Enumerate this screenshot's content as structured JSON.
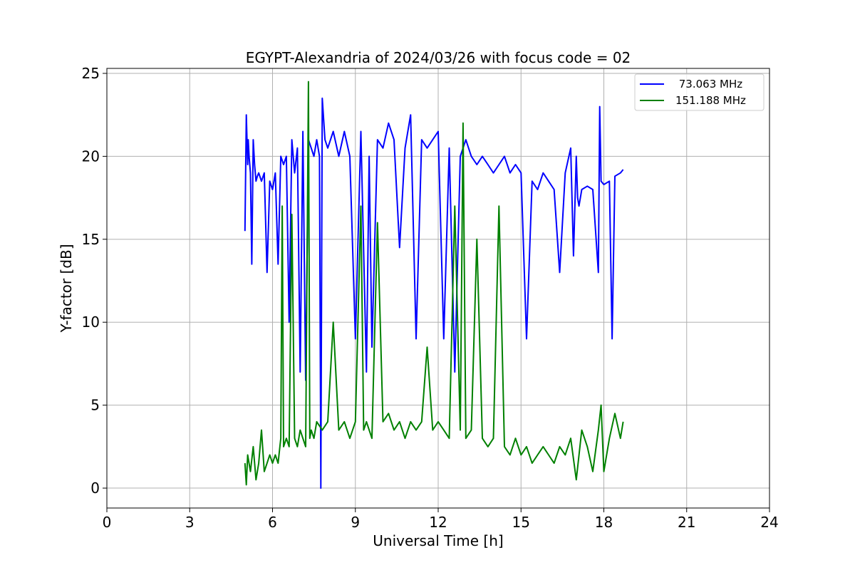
{
  "chart_data": {
    "type": "line",
    "title": "EGYPT-Alexandria of 2024/03/26 with focus code = 02",
    "xlabel": "Universal Time [h]",
    "ylabel": "Y-factor [dB]",
    "xlim": [
      0,
      24
    ],
    "ylim": [
      -1.2,
      25.3
    ],
    "xticks": [
      0,
      3,
      6,
      9,
      12,
      15,
      18,
      21,
      24
    ],
    "yticks": [
      0,
      5,
      10,
      15,
      20,
      25
    ],
    "grid": true,
    "legend_position": "top-right",
    "series": [
      {
        "name": " 73.063 MHz",
        "color": "#0000ff",
        "x": [
          5.0,
          5.05,
          5.1,
          5.12,
          5.15,
          5.2,
          5.25,
          5.3,
          5.35,
          5.4,
          5.45,
          5.5,
          5.6,
          5.7,
          5.8,
          5.9,
          6.0,
          6.1,
          6.2,
          6.3,
          6.4,
          6.5,
          6.6,
          6.7,
          6.8,
          6.9,
          7.0,
          7.1,
          7.2,
          7.3,
          7.4,
          7.5,
          7.6,
          7.7,
          7.75,
          7.8,
          7.9,
          8.0,
          8.2,
          8.4,
          8.6,
          8.8,
          9.0,
          9.2,
          9.4,
          9.5,
          9.6,
          9.8,
          10.0,
          10.2,
          10.4,
          10.6,
          10.8,
          11.0,
          11.2,
          11.4,
          11.6,
          11.8,
          12.0,
          12.2,
          12.4,
          12.6,
          12.8,
          13.0,
          13.2,
          13.4,
          13.6,
          13.8,
          14.0,
          14.2,
          14.4,
          14.6,
          14.8,
          15.0,
          15.2,
          15.4,
          15.6,
          15.8,
          16.0,
          16.2,
          16.4,
          16.6,
          16.8,
          16.9,
          17.0,
          17.05,
          17.1,
          17.2,
          17.4,
          17.6,
          17.8,
          17.85,
          17.9,
          18.0,
          18.2,
          18.3,
          18.4,
          18.6,
          18.7
        ],
        "y": [
          15.5,
          22.5,
          19.5,
          21.0,
          20.0,
          19.0,
          13.5,
          21.0,
          19.5,
          18.5,
          18.8,
          19.0,
          18.5,
          19.0,
          13.0,
          18.5,
          18.0,
          19.0,
          13.5,
          20.0,
          19.5,
          20.0,
          10.0,
          21.0,
          19.0,
          20.5,
          7.0,
          21.5,
          6.5,
          21.0,
          20.5,
          20.0,
          21.0,
          20.0,
          0.0,
          23.5,
          21.0,
          20.5,
          21.5,
          20.0,
          21.5,
          20.0,
          9.0,
          21.5,
          7.0,
          20.0,
          8.5,
          21.0,
          20.5,
          22.0,
          21.0,
          14.5,
          20.5,
          22.5,
          9.0,
          21.0,
          20.5,
          21.0,
          21.5,
          9.0,
          20.5,
          7.0,
          20.0,
          21.0,
          20.0,
          19.5,
          20.0,
          19.5,
          19.0,
          19.5,
          20.0,
          19.0,
          19.5,
          19.0,
          9.0,
          18.5,
          18.0,
          19.0,
          18.5,
          18.0,
          13.0,
          19.0,
          20.5,
          14.0,
          20.0,
          17.5,
          17.0,
          18.0,
          18.2,
          18.0,
          13.0,
          23.0,
          18.5,
          18.3,
          18.5,
          9.0,
          18.8,
          19.0,
          19.2
        ]
      },
      {
        "name": "151.188 MHz",
        "color": "#008000",
        "x": [
          5.0,
          5.05,
          5.1,
          5.2,
          5.3,
          5.4,
          5.5,
          5.6,
          5.7,
          5.8,
          5.9,
          6.0,
          6.1,
          6.2,
          6.3,
          6.35,
          6.4,
          6.5,
          6.6,
          6.7,
          6.8,
          6.9,
          7.0,
          7.1,
          7.2,
          7.3,
          7.35,
          7.4,
          7.5,
          7.6,
          7.8,
          8.0,
          8.2,
          8.4,
          8.6,
          8.8,
          9.0,
          9.2,
          9.3,
          9.4,
          9.6,
          9.8,
          10.0,
          10.2,
          10.4,
          10.6,
          10.8,
          11.0,
          11.2,
          11.4,
          11.6,
          11.8,
          12.0,
          12.2,
          12.4,
          12.6,
          12.8,
          12.9,
          13.0,
          13.2,
          13.4,
          13.6,
          13.8,
          14.0,
          14.2,
          14.4,
          14.6,
          14.8,
          15.0,
          15.2,
          15.4,
          15.6,
          15.8,
          16.0,
          16.2,
          16.4,
          16.6,
          16.8,
          17.0,
          17.2,
          17.4,
          17.6,
          17.8,
          17.9,
          18.0,
          18.2,
          18.4,
          18.6,
          18.7
        ],
        "y": [
          1.5,
          0.2,
          2.0,
          1.0,
          2.5,
          0.5,
          1.5,
          3.5,
          1.0,
          1.5,
          2.0,
          1.5,
          2.0,
          1.5,
          3.0,
          17.0,
          2.5,
          3.0,
          2.5,
          16.5,
          3.0,
          2.5,
          3.5,
          3.0,
          2.5,
          24.5,
          3.0,
          3.5,
          3.0,
          4.0,
          3.5,
          4.0,
          10.0,
          3.5,
          4.0,
          3.0,
          4.0,
          17.0,
          3.5,
          4.0,
          3.0,
          16.0,
          4.0,
          4.5,
          3.5,
          4.0,
          3.0,
          4.0,
          3.5,
          4.0,
          8.5,
          3.5,
          4.0,
          3.5,
          3.0,
          17.0,
          3.5,
          22.0,
          3.0,
          3.5,
          15.0,
          3.0,
          2.5,
          3.0,
          17.0,
          2.5,
          2.0,
          3.0,
          2.0,
          2.5,
          1.5,
          2.0,
          2.5,
          2.0,
          1.5,
          2.5,
          2.0,
          3.0,
          0.5,
          3.5,
          2.5,
          1.0,
          3.5,
          5.0,
          1.0,
          3.0,
          4.5,
          3.0,
          4.0
        ]
      }
    ]
  }
}
